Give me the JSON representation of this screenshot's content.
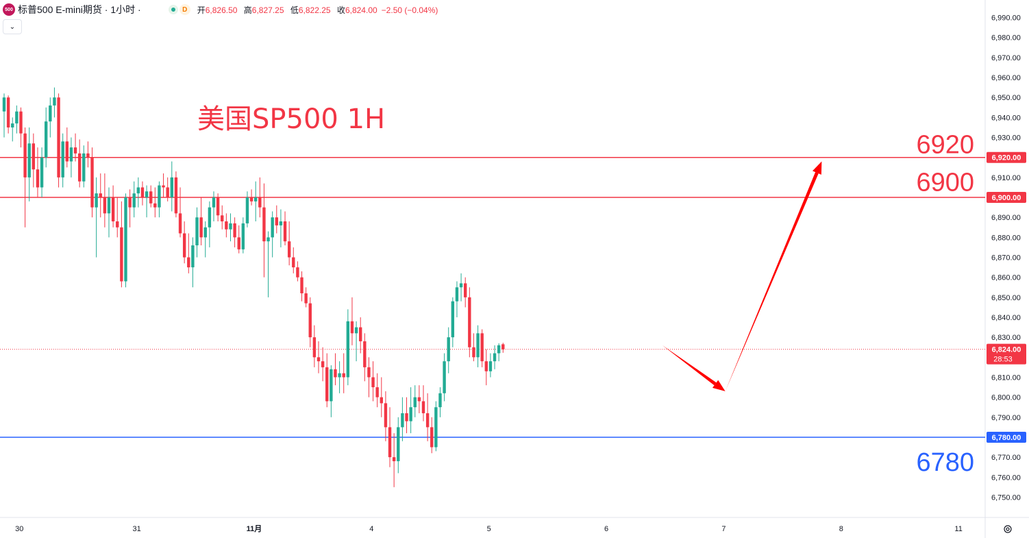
{
  "header": {
    "logo_text": "500",
    "title": "标普500 E-mini期货 · 1小时 ·",
    "delay_badge": "D",
    "open_label": "开",
    "open_value": "6,826.50",
    "high_label": "高",
    "high_value": "6,827.25",
    "low_label": "低",
    "low_value": "6,822.25",
    "close_label": "收",
    "close_value": "6,824.00",
    "change_value": "−2.50 (−0.04%)"
  },
  "annotation_title": "美国SP500 1H",
  "level_labels": {
    "r2": "6920",
    "r1": "6900",
    "s1": "6780"
  },
  "colors": {
    "up": "#22ab94",
    "down": "#f23645",
    "resistance": "#f23645",
    "support": "#2962ff",
    "arrow": "#ff0000",
    "axis_text": "#131722"
  },
  "icons": [
    "chevron-down-icon",
    "settings-icon",
    "market-open-dot-icon",
    "delayed-data-icon"
  ],
  "countdown": "28:53",
  "chart_data": {
    "type": "candlestick",
    "title": "美国SP500 1H",
    "ylim": [
      6745,
      6995
    ],
    "y_ticks": [
      6750,
      6760,
      6770,
      6780,
      6790,
      6800,
      6810,
      6820,
      6830,
      6840,
      6850,
      6860,
      6870,
      6880,
      6890,
      6900,
      6910,
      6920,
      6930,
      6940,
      6950,
      6960,
      6970,
      6980,
      6990
    ],
    "y_tick_labels": [
      "6,750.00",
      "6,760.00",
      "6,770.00",
      "6,780.00",
      "6,790.00",
      "6,800.00",
      "6,810.00",
      "6,820.00",
      "6,830.00",
      "6,840.00",
      "6,850.00",
      "6,860.00",
      "6,870.00",
      "6,880.00",
      "6,890.00",
      "6,900.00",
      "6,910.00",
      "6,920.00",
      "6,930.00",
      "6,940.00",
      "6,950.00",
      "6,960.00",
      "6,970.00",
      "6,980.00",
      "6,990.00"
    ],
    "x_ticks": [
      "30",
      "31",
      "11月",
      "4",
      "5",
      "6",
      "7",
      "8",
      "11"
    ],
    "x_tick_bar_index": [
      2,
      30,
      58,
      86,
      114,
      142,
      170,
      198,
      226
    ],
    "horizontal_lines": [
      {
        "value": 6920,
        "label": "6,920.00",
        "color": "#f23645"
      },
      {
        "value": 6900,
        "label": "6,900.00",
        "color": "#f23645"
      },
      {
        "value": 6780,
        "label": "6,780.00",
        "color": "#2962ff"
      }
    ],
    "last_price": {
      "value": 6824,
      "label": "6,824.00",
      "countdown": "28:53"
    },
    "projection_arrows": [
      {
        "from": [
          157,
          6826
        ],
        "to": [
          172,
          6803
        ]
      },
      {
        "from": [
          172,
          6803
        ],
        "to": [
          195,
          6918
        ]
      }
    ],
    "ohlc": [
      [
        6943,
        6952,
        6930,
        6950
      ],
      [
        6950,
        6951,
        6932,
        6935
      ],
      [
        6935,
        6940,
        6928,
        6937
      ],
      [
        6937,
        6946,
        6932,
        6943
      ],
      [
        6943,
        6945,
        6925,
        6932
      ],
      [
        6932,
        6935,
        6885,
        6910
      ],
      [
        6910,
        6935,
        6898,
        6927
      ],
      [
        6927,
        6932,
        6905,
        6914
      ],
      [
        6914,
        6925,
        6900,
        6905
      ],
      [
        6905,
        6925,
        6900,
        6920
      ],
      [
        6920,
        6945,
        6915,
        6938
      ],
      [
        6938,
        6950,
        6930,
        6946
      ],
      [
        6946,
        6955,
        6940,
        6950
      ],
      [
        6950,
        6952,
        6905,
        6910
      ],
      [
        6910,
        6932,
        6905,
        6928
      ],
      [
        6928,
        6935,
        6915,
        6918
      ],
      [
        6918,
        6930,
        6910,
        6925
      ],
      [
        6925,
        6932,
        6918,
        6922
      ],
      [
        6922,
        6929,
        6905,
        6908
      ],
      [
        6908,
        6926,
        6905,
        6922
      ],
      [
        6922,
        6928,
        6915,
        6920
      ],
      [
        6920,
        6925,
        6890,
        6895
      ],
      [
        6895,
        6910,
        6870,
        6902
      ],
      [
        6902,
        6912,
        6890,
        6900
      ],
      [
        6900,
        6912,
        6885,
        6892
      ],
      [
        6892,
        6905,
        6880,
        6900
      ],
      [
        6900,
        6906,
        6885,
        6888
      ],
      [
        6888,
        6900,
        6880,
        6885
      ],
      [
        6885,
        6898,
        6855,
        6858
      ],
      [
        6858,
        6902,
        6855,
        6900
      ],
      [
        6900,
        6904,
        6885,
        6895
      ],
      [
        6895,
        6908,
        6890,
        6902
      ],
      [
        6902,
        6910,
        6895,
        6905
      ],
      [
        6905,
        6908,
        6896,
        6900
      ],
      [
        6900,
        6906,
        6890,
        6903
      ],
      [
        6903,
        6906,
        6895,
        6897
      ],
      [
        6897,
        6905,
        6890,
        6895
      ],
      [
        6895,
        6908,
        6890,
        6906
      ],
      [
        6906,
        6912,
        6900,
        6905
      ],
      [
        6905,
        6910,
        6898,
        6900
      ],
      [
        6900,
        6918,
        6893,
        6910
      ],
      [
        6910,
        6913,
        6890,
        6892
      ],
      [
        6892,
        6905,
        6880,
        6882
      ],
      [
        6882,
        6888,
        6867,
        6870
      ],
      [
        6870,
        6882,
        6862,
        6865
      ],
      [
        6865,
        6880,
        6855,
        6876
      ],
      [
        6876,
        6895,
        6870,
        6890
      ],
      [
        6890,
        6900,
        6876,
        6880
      ],
      [
        6880,
        6888,
        6870,
        6885
      ],
      [
        6885,
        6898,
        6875,
        6895
      ],
      [
        6895,
        6903,
        6888,
        6900
      ],
      [
        6900,
        6902,
        6888,
        6891
      ],
      [
        6891,
        6896,
        6884,
        6888
      ],
      [
        6888,
        6892,
        6880,
        6884
      ],
      [
        6884,
        6892,
        6878,
        6887
      ],
      [
        6887,
        6890,
        6875,
        6880
      ],
      [
        6880,
        6886,
        6872,
        6874
      ],
      [
        6874,
        6890,
        6872,
        6887
      ],
      [
        6887,
        6903,
        6885,
        6900
      ],
      [
        6900,
        6904,
        6896,
        6898
      ],
      [
        6898,
        6908,
        6888,
        6900
      ],
      [
        6900,
        6910,
        6890,
        6895
      ],
      [
        6895,
        6907,
        6860,
        6878
      ],
      [
        6878,
        6883,
        6850,
        6880
      ],
      [
        6880,
        6893,
        6870,
        6890
      ],
      [
        6890,
        6896,
        6882,
        6886
      ],
      [
        6886,
        6894,
        6875,
        6888
      ],
      [
        6888,
        6893,
        6876,
        6878
      ],
      [
        6878,
        6888,
        6866,
        6870
      ],
      [
        6870,
        6875,
        6862,
        6865
      ],
      [
        6865,
        6868,
        6858,
        6860
      ],
      [
        6860,
        6863,
        6848,
        6852
      ],
      [
        6852,
        6855,
        6845,
        6847
      ],
      [
        6847,
        6850,
        6825,
        6830
      ],
      [
        6830,
        6836,
        6815,
        6820
      ],
      [
        6820,
        6828,
        6812,
        6818
      ],
      [
        6818,
        6825,
        6808,
        6815
      ],
      [
        6815,
        6822,
        6795,
        6798
      ],
      [
        6798,
        6816,
        6790,
        6814
      ],
      [
        6814,
        6822,
        6806,
        6810
      ],
      [
        6810,
        6818,
        6802,
        6812
      ],
      [
        6812,
        6822,
        6802,
        6810
      ],
      [
        6810,
        6844,
        6806,
        6838
      ],
      [
        6838,
        6850,
        6826,
        6832
      ],
      [
        6832,
        6838,
        6818,
        6835
      ],
      [
        6835,
        6840,
        6822,
        6828
      ],
      [
        6828,
        6832,
        6808,
        6815
      ],
      [
        6815,
        6820,
        6800,
        6810
      ],
      [
        6810,
        6818,
        6798,
        6805
      ],
      [
        6805,
        6812,
        6795,
        6800
      ],
      [
        6800,
        6810,
        6790,
        6797
      ],
      [
        6797,
        6803,
        6778,
        6785
      ],
      [
        6785,
        6795,
        6765,
        6770
      ],
      [
        6770,
        6782,
        6755,
        6768
      ],
      [
        6768,
        6790,
        6762,
        6785
      ],
      [
        6785,
        6800,
        6778,
        6792
      ],
      [
        6792,
        6800,
        6782,
        6788
      ],
      [
        6788,
        6805,
        6782,
        6795
      ],
      [
        6795,
        6806,
        6790,
        6800
      ],
      [
        6800,
        6806,
        6792,
        6798
      ],
      [
        6798,
        6806,
        6788,
        6792
      ],
      [
        6792,
        6802,
        6778,
        6785
      ],
      [
        6785,
        6790,
        6772,
        6775
      ],
      [
        6775,
        6798,
        6773,
        6795
      ],
      [
        6795,
        6805,
        6790,
        6802
      ],
      [
        6802,
        6822,
        6798,
        6818
      ],
      [
        6818,
        6835,
        6812,
        6830
      ],
      [
        6830,
        6850,
        6825,
        6848
      ],
      [
        6848,
        6858,
        6840,
        6855
      ],
      [
        6855,
        6862,
        6848,
        6857
      ],
      [
        6857,
        6860,
        6845,
        6850
      ],
      [
        6850,
        6855,
        6820,
        6825
      ],
      [
        6825,
        6832,
        6818,
        6820
      ],
      [
        6820,
        6836,
        6815,
        6832
      ],
      [
        6832,
        6834,
        6815,
        6818
      ],
      [
        6818,
        6824,
        6806,
        6813
      ],
      [
        6813,
        6822,
        6810,
        6818
      ],
      [
        6818,
        6826,
        6814,
        6822
      ],
      [
        6822,
        6827,
        6818,
        6826
      ],
      [
        6826.5,
        6827.25,
        6822.25,
        6824
      ]
    ]
  }
}
